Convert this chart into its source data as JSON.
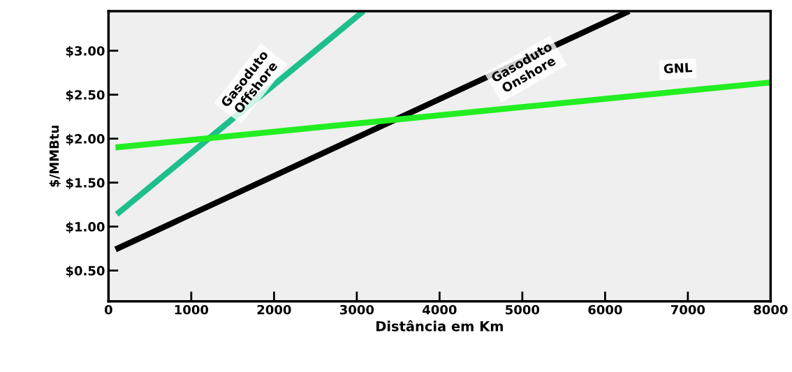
{
  "chart_data": {
    "type": "line",
    "xlabel": "Distância em Km",
    "ylabel": "$/MMBtu",
    "xlim": [
      0,
      8000
    ],
    "xticks": [
      0,
      1000,
      2000,
      3000,
      4000,
      5000,
      6000,
      7000,
      8000
    ],
    "ylim": [
      0.15,
      3.45
    ],
    "yticks": [
      {
        "value": 0.5,
        "label": "$0.50"
      },
      {
        "value": 1.0,
        "label": "$1.00"
      },
      {
        "value": 1.5,
        "label": "$1.50"
      },
      {
        "value": 2.0,
        "label": "$2.00"
      },
      {
        "value": 2.5,
        "label": "$2.50"
      },
      {
        "value": 3.0,
        "label": "$3.00"
      }
    ],
    "grid": false,
    "legend": false,
    "series": [
      {
        "color": "#1dbf8c",
        "x": [
          100,
          3080
        ],
        "values": [
          1.14,
          3.45
        ]
      },
      {
        "color": "#000000",
        "x": [
          85,
          6290
        ],
        "values": [
          0.74,
          3.45
        ]
      },
      {
        "color": "#22ee22",
        "x": [
          85,
          8000
        ],
        "values": [
          1.9,
          2.64
        ]
      }
    ],
    "annotations": [
      "Gasoduto\nOffshore",
      "Gasoduto\nOnshore",
      "GNL"
    ]
  }
}
